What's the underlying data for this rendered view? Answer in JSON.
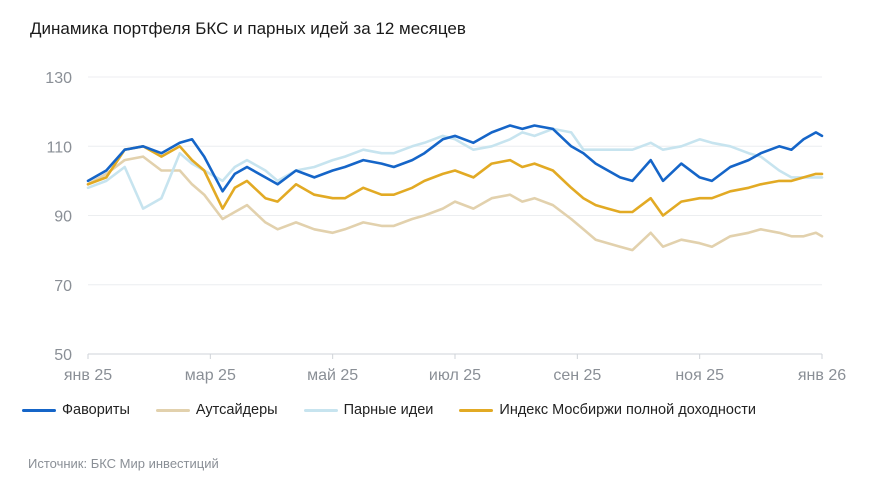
{
  "title": "Динамика портфеля БКС и парных идей за 12 месяцев",
  "source": "Источник: БКС Мир инвестиций",
  "chart_data": {
    "type": "line",
    "y_ticks": [
      50,
      70,
      90,
      110,
      130
    ],
    "ylim": [
      50,
      130
    ],
    "x_ticks": [
      "янв 25",
      "мар 25",
      "май 25",
      "июл 25",
      "сен 25",
      "ноя 25",
      "янв 26"
    ],
    "xlim": [
      0,
      12
    ],
    "grid": true,
    "legend_position": "bottom",
    "series": [
      {
        "name": "Фавориты",
        "color": "#1565c8",
        "x": [
          0,
          0.3,
          0.6,
          0.9,
          1.2,
          1.5,
          1.7,
          1.9,
          2.2,
          2.4,
          2.6,
          2.9,
          3.1,
          3.4,
          3.7,
          4.0,
          4.2,
          4.5,
          4.8,
          5.0,
          5.3,
          5.5,
          5.8,
          6.0,
          6.3,
          6.6,
          6.9,
          7.1,
          7.3,
          7.6,
          7.9,
          8.1,
          8.3,
          8.5,
          8.7,
          8.9,
          9.2,
          9.4,
          9.7,
          10.0,
          10.2,
          10.5,
          10.8,
          11.0,
          11.3,
          11.5,
          11.7,
          11.9,
          12
        ],
        "y": [
          100,
          103,
          109,
          110,
          108,
          111,
          112,
          107,
          97,
          102,
          104,
          101,
          99,
          103,
          101,
          103,
          104,
          106,
          105,
          104,
          106,
          108,
          112,
          113,
          111,
          114,
          116,
          115,
          116,
          115,
          110,
          108,
          105,
          103,
          101,
          100,
          106,
          100,
          105,
          101,
          100,
          104,
          106,
          108,
          110,
          109,
          112,
          114,
          113
        ]
      },
      {
        "name": "Аутсайдеры",
        "color": "#e2d1ad",
        "x": [
          0,
          0.3,
          0.6,
          0.9,
          1.2,
          1.5,
          1.7,
          1.9,
          2.2,
          2.4,
          2.6,
          2.9,
          3.1,
          3.4,
          3.7,
          4.0,
          4.2,
          4.5,
          4.8,
          5.0,
          5.3,
          5.5,
          5.8,
          6.0,
          6.3,
          6.6,
          6.9,
          7.1,
          7.3,
          7.6,
          7.9,
          8.1,
          8.3,
          8.5,
          8.7,
          8.9,
          9.2,
          9.4,
          9.7,
          10.0,
          10.2,
          10.5,
          10.8,
          11.0,
          11.3,
          11.5,
          11.7,
          11.9,
          12
        ],
        "y": [
          99,
          102,
          106,
          107,
          103,
          103,
          99,
          96,
          89,
          91,
          93,
          88,
          86,
          88,
          86,
          85,
          86,
          88,
          87,
          87,
          89,
          90,
          92,
          94,
          92,
          95,
          96,
          94,
          95,
          93,
          89,
          86,
          83,
          82,
          81,
          80,
          85,
          81,
          83,
          82,
          81,
          84,
          85,
          86,
          85,
          84,
          84,
          85,
          84
        ]
      },
      {
        "name": "Парные идеи",
        "color": "#c7e4ef",
        "x": [
          0,
          0.3,
          0.6,
          0.9,
          1.2,
          1.5,
          1.7,
          1.9,
          2.2,
          2.4,
          2.6,
          2.9,
          3.1,
          3.4,
          3.7,
          4.0,
          4.2,
          4.5,
          4.8,
          5.0,
          5.3,
          5.5,
          5.8,
          6.0,
          6.3,
          6.6,
          6.9,
          7.1,
          7.3,
          7.6,
          7.9,
          8.1,
          8.3,
          8.5,
          8.7,
          8.9,
          9.2,
          9.4,
          9.7,
          10.0,
          10.2,
          10.5,
          10.8,
          11.0,
          11.3,
          11.5,
          11.7,
          11.9,
          12
        ],
        "y": [
          98,
          100,
          104,
          92,
          95,
          108,
          105,
          103,
          100,
          104,
          106,
          103,
          100,
          103,
          104,
          106,
          107,
          109,
          108,
          108,
          110,
          111,
          113,
          112,
          109,
          110,
          112,
          114,
          113,
          115,
          114,
          109,
          109,
          109,
          109,
          109,
          111,
          109,
          110,
          112,
          111,
          110,
          108,
          107,
          103,
          101,
          101,
          101,
          101
        ]
      },
      {
        "name": "Индекс Мосбиржи полной доходности",
        "color": "#e2aa24",
        "x": [
          0,
          0.3,
          0.6,
          0.9,
          1.2,
          1.5,
          1.7,
          1.9,
          2.2,
          2.4,
          2.6,
          2.9,
          3.1,
          3.4,
          3.7,
          4.0,
          4.2,
          4.5,
          4.8,
          5.0,
          5.3,
          5.5,
          5.8,
          6.0,
          6.3,
          6.6,
          6.9,
          7.1,
          7.3,
          7.6,
          7.9,
          8.1,
          8.3,
          8.5,
          8.7,
          8.9,
          9.2,
          9.4,
          9.7,
          10.0,
          10.2,
          10.5,
          10.8,
          11.0,
          11.3,
          11.5,
          11.7,
          11.9,
          12
        ],
        "y": [
          99,
          101,
          109,
          110,
          107,
          110,
          106,
          103,
          92,
          98,
          100,
          95,
          94,
          99,
          96,
          95,
          95,
          98,
          96,
          96,
          98,
          100,
          102,
          103,
          101,
          105,
          106,
          104,
          105,
          103,
          98,
          95,
          93,
          92,
          91,
          91,
          95,
          90,
          94,
          95,
          95,
          97,
          98,
          99,
          100,
          100,
          101,
          102,
          102
        ]
      }
    ]
  }
}
